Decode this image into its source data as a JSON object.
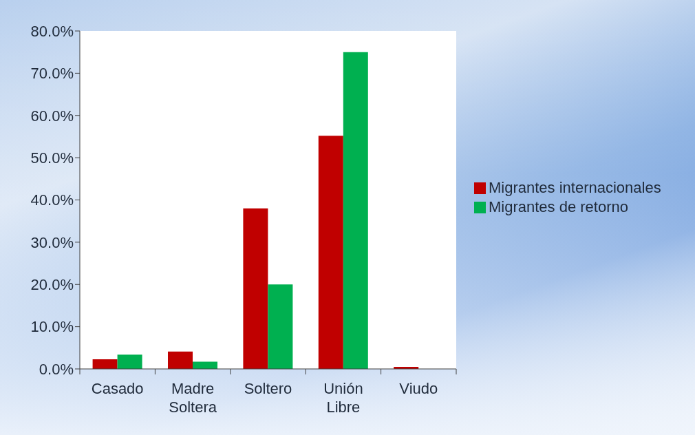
{
  "chart_data": {
    "type": "bar",
    "categories": [
      "Casado",
      "Madre Soltera",
      "Soltero",
      "Unión Libre",
      "Viudo"
    ],
    "series": [
      {
        "name": "Migrantes internacionales",
        "color": "#c00000",
        "values": [
          2.3,
          4.1,
          38.0,
          55.2,
          0.5
        ]
      },
      {
        "name": "Migrantes de retorno",
        "color": "#00b050",
        "values": [
          3.4,
          1.7,
          20.0,
          75.0,
          0
        ]
      }
    ],
    "ylim": [
      0,
      80
    ],
    "yticks": [
      {
        "value": 0,
        "label": "0.0%"
      },
      {
        "value": 10,
        "label": "10.0%"
      },
      {
        "value": 20,
        "label": "20.0%"
      },
      {
        "value": 30,
        "label": "30.0%"
      },
      {
        "value": 40,
        "label": "40.0%"
      },
      {
        "value": 50,
        "label": "50.0%"
      },
      {
        "value": 60,
        "label": "60.0%"
      },
      {
        "value": 70,
        "label": "70.0%"
      },
      {
        "value": 80,
        "label": "80.0%"
      }
    ],
    "legend": "right"
  }
}
